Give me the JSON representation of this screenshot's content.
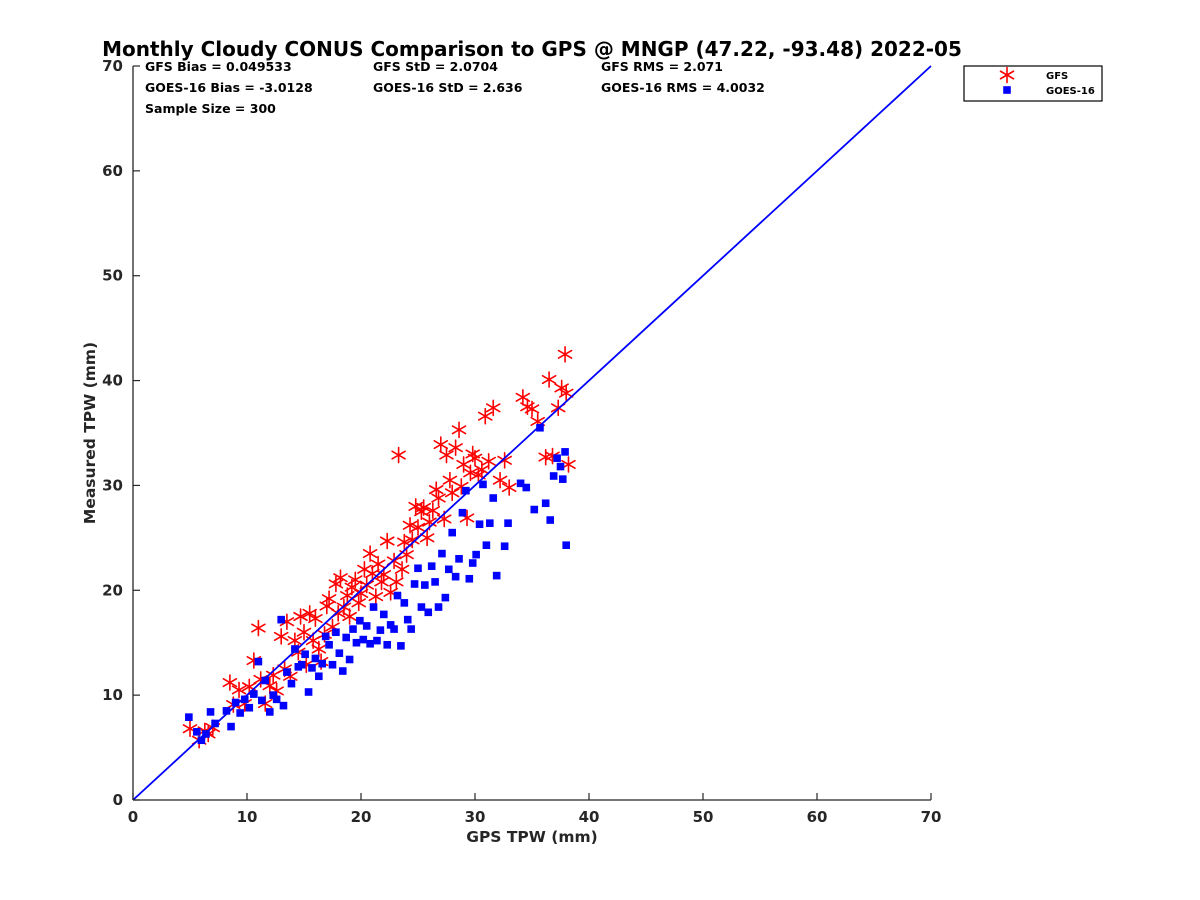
{
  "chart_data": {
    "type": "scatter",
    "title": "Monthly Cloudy CONUS Comparison to GPS @ MNGP (47.22, -93.48) 2022-05",
    "xlabel": "GPS TPW (mm)",
    "ylabel": "Measured TPW (mm)",
    "xlim": [
      0,
      70
    ],
    "ylim": [
      0,
      70
    ],
    "xticks": [
      "0",
      "10",
      "20",
      "30",
      "40",
      "50",
      "60",
      "70"
    ],
    "yticks": [
      "0",
      "10",
      "20",
      "30",
      "40",
      "50",
      "60",
      "70"
    ],
    "grid": false,
    "legend_position": "outside top-right",
    "stats": {
      "gfs_bias": "GFS Bias = 0.049533",
      "gfs_std": "GFS StD = 2.0704",
      "gfs_rms": "GFS RMS = 2.071",
      "goes_bias": "GOES-16 Bias = -3.0128",
      "goes_std": "GOES-16 StD = 2.636",
      "goes_rms": "GOES-16 RMS = 4.0032",
      "sample_size": "Sample Size = 300"
    },
    "reference_line": {
      "x": [
        0,
        70
      ],
      "y": [
        0,
        70
      ],
      "color": "#0000ff"
    },
    "series": [
      {
        "name": "GFS",
        "marker": "asterisk",
        "color": "#ff0000",
        "points": [
          [
            5,
            6.8
          ],
          [
            5.8,
            5.7
          ],
          [
            6.3,
            6.6
          ],
          [
            6.6,
            6.3
          ],
          [
            7,
            6.9
          ],
          [
            8.5,
            11.2
          ],
          [
            8.8,
            9.1
          ],
          [
            9.3,
            10.5
          ],
          [
            9.8,
            9.2
          ],
          [
            10.2,
            10.8
          ],
          [
            10.6,
            13.3
          ],
          [
            11,
            16.4
          ],
          [
            11.2,
            11.5
          ],
          [
            11.6,
            9.2
          ],
          [
            12,
            10.9
          ],
          [
            12.3,
            11.9
          ],
          [
            12.6,
            10.4
          ],
          [
            13,
            15.6
          ],
          [
            13.3,
            12.5
          ],
          [
            13.5,
            17
          ],
          [
            13.8,
            11.8
          ],
          [
            14.2,
            15.2
          ],
          [
            14.5,
            14.1
          ],
          [
            14.7,
            17.5
          ],
          [
            15,
            16
          ],
          [
            15.2,
            12.9
          ],
          [
            15.5,
            17.8
          ],
          [
            15.8,
            15.2
          ],
          [
            16,
            17.3
          ],
          [
            16.3,
            14.4
          ],
          [
            16.5,
            13.2
          ],
          [
            16.8,
            15.8
          ],
          [
            17,
            18.5
          ],
          [
            17.2,
            19.2
          ],
          [
            17.5,
            16.5
          ],
          [
            17.8,
            20.6
          ],
          [
            18,
            17.8
          ],
          [
            18.2,
            21.2
          ],
          [
            18.5,
            18.4
          ],
          [
            18.8,
            19.5
          ],
          [
            19,
            17.5
          ],
          [
            19.2,
            20.3
          ],
          [
            19.5,
            21
          ],
          [
            19.8,
            18.8
          ],
          [
            20,
            19.7
          ],
          [
            20.3,
            22
          ],
          [
            20.5,
            20.5
          ],
          [
            20.8,
            23.5
          ],
          [
            21,
            21.6
          ],
          [
            21.3,
            19.4
          ],
          [
            21.5,
            22.5
          ],
          [
            21.8,
            20.8
          ],
          [
            22,
            21.5
          ],
          [
            22.3,
            24.7
          ],
          [
            22.6,
            19.8
          ],
          [
            22.9,
            22.8
          ],
          [
            23.1,
            20.8
          ],
          [
            23.3,
            32.9
          ],
          [
            23.6,
            22
          ],
          [
            23.8,
            24.6
          ],
          [
            24,
            23.4
          ],
          [
            24.3,
            26.2
          ],
          [
            24.5,
            24.8
          ],
          [
            24.8,
            28
          ],
          [
            25,
            26
          ],
          [
            25.3,
            27.5
          ],
          [
            25.5,
            27.9
          ],
          [
            25.8,
            25
          ],
          [
            26,
            26.5
          ],
          [
            26.3,
            27.6
          ],
          [
            26.6,
            29.6
          ],
          [
            26.8,
            28.8
          ],
          [
            27,
            33.9
          ],
          [
            27.3,
            26.8
          ],
          [
            27.5,
            32.9
          ],
          [
            27.8,
            30.5
          ],
          [
            28,
            29.3
          ],
          [
            28.3,
            33.6
          ],
          [
            28.6,
            35.3
          ],
          [
            28.8,
            29.9
          ],
          [
            29,
            32
          ],
          [
            29.3,
            26.9
          ],
          [
            29.6,
            31.2
          ],
          [
            29.8,
            33
          ],
          [
            30,
            32.6
          ],
          [
            30.3,
            31
          ],
          [
            30.6,
            31.5
          ],
          [
            30.9,
            36.6
          ],
          [
            31.2,
            32.3
          ],
          [
            31.6,
            37.4
          ],
          [
            32.2,
            30.5
          ],
          [
            32.6,
            32.4
          ],
          [
            33,
            29.8
          ],
          [
            34.2,
            38.4
          ],
          [
            34.6,
            37.5
          ],
          [
            35,
            37.3
          ],
          [
            35.5,
            36.1
          ],
          [
            36.2,
            32.7
          ],
          [
            36.5,
            40.1
          ],
          [
            36.8,
            32.8
          ],
          [
            37.3,
            37.4
          ],
          [
            37.6,
            39.3
          ],
          [
            37.9,
            42.5
          ],
          [
            38,
            38.8
          ],
          [
            38.2,
            32
          ]
        ]
      },
      {
        "name": "GOES-16",
        "marker": "square",
        "color": "#0000ff",
        "points": [
          [
            4.9,
            7.9
          ],
          [
            5.6,
            6.5
          ],
          [
            6,
            5.7
          ],
          [
            6.4,
            6.3
          ],
          [
            6.8,
            8.4
          ],
          [
            7.2,
            7.3
          ],
          [
            8.2,
            8.5
          ],
          [
            8.6,
            7
          ],
          [
            9,
            9.3
          ],
          [
            9.4,
            8.3
          ],
          [
            9.8,
            9.6
          ],
          [
            10.2,
            8.8
          ],
          [
            10.6,
            10.1
          ],
          [
            11,
            13.2
          ],
          [
            11.3,
            9.5
          ],
          [
            11.6,
            11.4
          ],
          [
            12,
            8.4
          ],
          [
            12.3,
            10
          ],
          [
            12.6,
            9.6
          ],
          [
            13,
            17.2
          ],
          [
            13.2,
            9
          ],
          [
            13.5,
            12.2
          ],
          [
            13.9,
            11.1
          ],
          [
            14.2,
            14.4
          ],
          [
            14.5,
            12.7
          ],
          [
            14.8,
            12.9
          ],
          [
            15.1,
            13.9
          ],
          [
            15.4,
            10.3
          ],
          [
            15.7,
            12.6
          ],
          [
            16,
            13.5
          ],
          [
            16.3,
            11.8
          ],
          [
            16.6,
            13
          ],
          [
            16.9,
            15.6
          ],
          [
            17.2,
            14.8
          ],
          [
            17.5,
            12.9
          ],
          [
            17.8,
            16
          ],
          [
            18.1,
            14
          ],
          [
            18.4,
            12.3
          ],
          [
            18.7,
            15.5
          ],
          [
            19,
            13.4
          ],
          [
            19.3,
            16.3
          ],
          [
            19.6,
            15
          ],
          [
            19.9,
            17.1
          ],
          [
            20.2,
            15.3
          ],
          [
            20.5,
            16.6
          ],
          [
            20.8,
            14.9
          ],
          [
            21.1,
            18.4
          ],
          [
            21.4,
            15.2
          ],
          [
            21.7,
            16.2
          ],
          [
            22,
            17.7
          ],
          [
            22.3,
            14.8
          ],
          [
            22.6,
            16.7
          ],
          [
            22.9,
            16.3
          ],
          [
            23.2,
            19.5
          ],
          [
            23.5,
            14.7
          ],
          [
            23.8,
            18.8
          ],
          [
            24.1,
            17.2
          ],
          [
            24.4,
            16.3
          ],
          [
            24.7,
            20.6
          ],
          [
            25,
            22.1
          ],
          [
            25.3,
            18.4
          ],
          [
            25.6,
            20.5
          ],
          [
            25.9,
            17.9
          ],
          [
            26.2,
            22.3
          ],
          [
            26.5,
            20.8
          ],
          [
            26.8,
            18.4
          ],
          [
            27.1,
            23.5
          ],
          [
            27.4,
            19.3
          ],
          [
            27.7,
            22
          ],
          [
            28,
            25.5
          ],
          [
            28.3,
            21.3
          ],
          [
            28.6,
            23
          ],
          [
            28.9,
            27.4
          ],
          [
            29.2,
            29.5
          ],
          [
            29.5,
            21.1
          ],
          [
            29.8,
            22.6
          ],
          [
            30.1,
            23.4
          ],
          [
            30.4,
            26.3
          ],
          [
            30.7,
            30.1
          ],
          [
            31,
            24.3
          ],
          [
            31.3,
            26.4
          ],
          [
            31.6,
            28.8
          ],
          [
            31.9,
            21.4
          ],
          [
            32.6,
            24.2
          ],
          [
            32.9,
            26.4
          ],
          [
            34,
            30.2
          ],
          [
            34.5,
            29.8
          ],
          [
            35.2,
            27.7
          ],
          [
            35.7,
            35.5
          ],
          [
            36.2,
            28.3
          ],
          [
            36.6,
            26.7
          ],
          [
            36.9,
            30.9
          ],
          [
            37.2,
            32.6
          ],
          [
            37.5,
            31.8
          ],
          [
            37.7,
            30.6
          ],
          [
            37.9,
            33.2
          ],
          [
            38,
            24.3
          ]
        ]
      }
    ]
  }
}
